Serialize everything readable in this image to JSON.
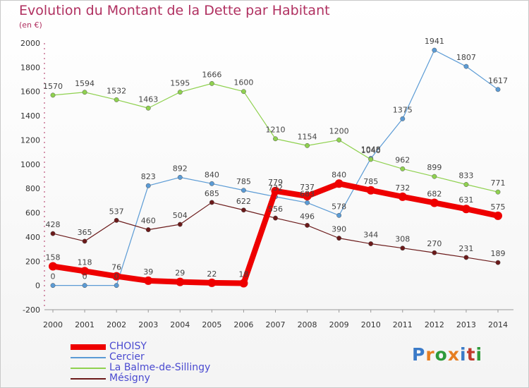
{
  "title": "Evolution du Montant de la Dette par Habitant",
  "subtitle": "(en €)",
  "logo": [
    "P",
    "r",
    "o",
    "x",
    "i",
    "t",
    "i"
  ],
  "logo_colors": [
    "#3a7ac8",
    "#e67e22",
    "#2e9a3a",
    "#e67e22",
    "#3a7ac8",
    "#c0392b",
    "#2e9a3a"
  ],
  "chart_data": {
    "type": "line",
    "title": "Evolution du Montant de la Dette par Habitant",
    "subtitle": "(en €)",
    "x": [
      2000,
      2001,
      2002,
      2003,
      2004,
      2005,
      2006,
      2007,
      2008,
      2009,
      2010,
      2011,
      2012,
      2013,
      2014
    ],
    "ylim": [
      -200,
      2000
    ],
    "yticks": [
      -200,
      0,
      200,
      400,
      600,
      800,
      1000,
      1200,
      1400,
      1600,
      1800,
      2000
    ],
    "grid": false,
    "legend": "bottom-left",
    "series": [
      {
        "name": "CHOISY",
        "color": "#ee0000",
        "width": 8,
        "marker": 6,
        "values": [
          158,
          118,
          76,
          39,
          29,
          22,
          18,
          779,
          737,
          840,
          785,
          732,
          682,
          631,
          575
        ]
      },
      {
        "name": "Cercier",
        "color": "#5b9bd5",
        "width": 1.2,
        "marker": 3.2,
        "values": [
          0,
          0,
          0,
          823,
          892,
          840,
          785,
          732,
          683,
          578,
          1048,
          1375,
          1941,
          1807,
          1617
        ]
      },
      {
        "name": "La Balme-de-Sillingy",
        "color": "#8fd14f",
        "width": 1.2,
        "marker": 3.2,
        "values": [
          1570,
          1594,
          1532,
          1463,
          1595,
          1666,
          1600,
          1210,
          1154,
          1200,
          1040,
          962,
          899,
          833,
          771
        ]
      },
      {
        "name": "Mésigny",
        "color": "#6b1a1a",
        "width": 1.2,
        "marker": 3.2,
        "values": [
          428,
          365,
          537,
          460,
          504,
          685,
          622,
          556,
          496,
          390,
          344,
          308,
          270,
          231,
          189
        ]
      }
    ]
  }
}
